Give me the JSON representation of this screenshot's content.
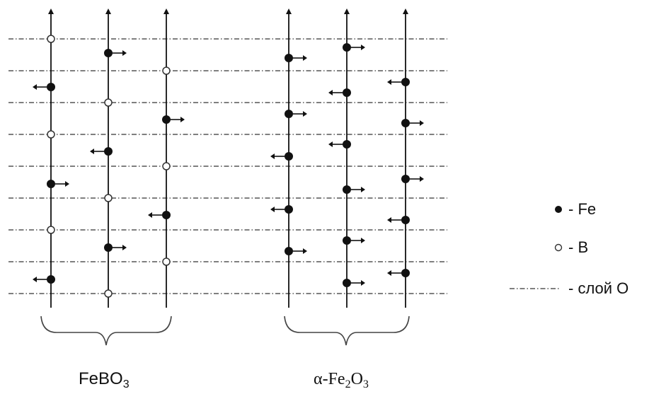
{
  "groups": [
    {
      "label": "FeBO",
      "sub": "3"
    },
    {
      "label": "α-Fe",
      "sub": "2",
      "label2": "O",
      "sub2": "3"
    }
  ],
  "legend": {
    "fe": "- Fe",
    "b": "- B",
    "layer": "- слой O"
  }
}
